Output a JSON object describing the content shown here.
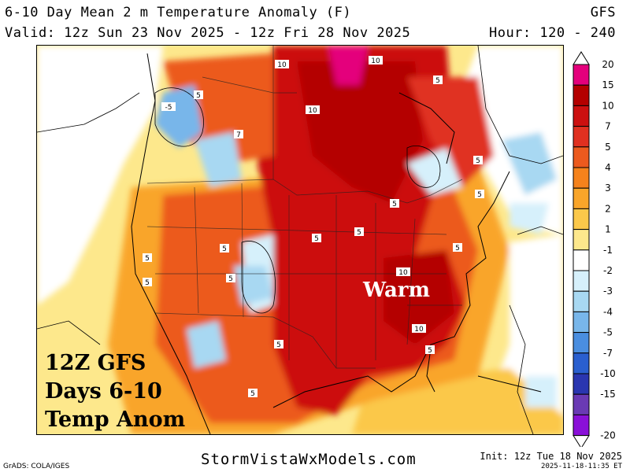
{
  "header": {
    "title": "6-10 Day Mean 2 m Temperature Anomaly (F)",
    "model": "GFS",
    "valid": "Valid: 12z Sun 23 Nov 2025 - 12z Fri 28 Nov 2025",
    "hours": "Hour: 120 - 240"
  },
  "overlay": {
    "line1": "12Z GFS",
    "line2": "Days 6-10",
    "line3": "Temp Anom",
    "warm": "Warm"
  },
  "contour_labels": [
    "-5",
    "5",
    "7",
    "10",
    "10",
    "10",
    "5",
    "5",
    "5",
    "5",
    "5",
    "10",
    "10",
    "5",
    "5",
    "5",
    "5",
    "5",
    "5",
    "5",
    "5",
    "5"
  ],
  "colorbar": {
    "labels": [
      "20",
      "15",
      "10",
      "7",
      "5",
      "4",
      "3",
      "2",
      "1",
      "-1",
      "-2",
      "-3",
      "-4",
      "-5",
      "-7",
      "-10",
      "-15",
      "-20"
    ],
    "colors": [
      "#e4007c",
      "#b40000",
      "#cc1010",
      "#e03020",
      "#ec5a1e",
      "#f5821c",
      "#f9a52a",
      "#fbc84a",
      "#fde88c",
      "#ffffff",
      "#d6f0fb",
      "#a8d8f2",
      "#78b6ea",
      "#4a8ee0",
      "#2a5fcf",
      "#2a36b0",
      "#6a3ab4",
      "#8a10d8"
    ]
  },
  "footer": {
    "left": "GrADS: COLA/IGES",
    "center": "StormVistaWxModels.com",
    "init": "Init: 12z Tue 18 Nov 2025",
    "timestamp": "2025-11-18-11:35 ET"
  }
}
